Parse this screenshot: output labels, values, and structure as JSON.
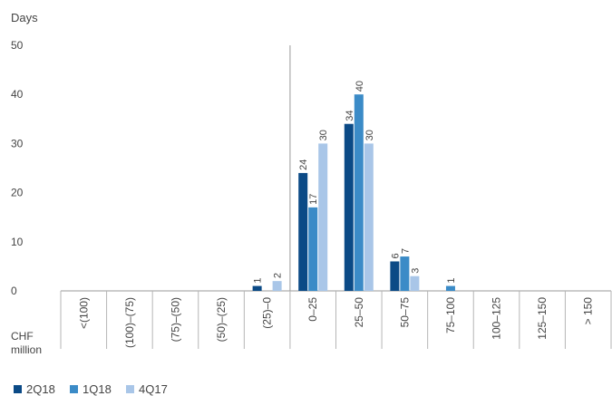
{
  "chart_data": {
    "type": "bar",
    "ylabel": "Days",
    "xlabel_lines": [
      "CHF",
      "million"
    ],
    "ylim": [
      0,
      50
    ],
    "yticks": [
      0,
      10,
      20,
      30,
      40,
      50
    ],
    "grid": false,
    "legend_position": "bottom-left",
    "categories": [
      "<(100)",
      "(100)–(75)",
      "(75)–(50)",
      "(50)–(25)",
      "(25)–0",
      "0–25",
      "25–50",
      "50–75",
      "75–100",
      "100–125",
      "125–150",
      "> 150"
    ],
    "series": [
      {
        "name": "2Q18",
        "color": "#0b4a86",
        "values": [
          null,
          null,
          null,
          null,
          1,
          24,
          34,
          6,
          null,
          null,
          null,
          null
        ]
      },
      {
        "name": "1Q18",
        "color": "#3b8bc7",
        "values": [
          null,
          null,
          null,
          null,
          null,
          17,
          40,
          7,
          1,
          null,
          null,
          null
        ]
      },
      {
        "name": "4Q17",
        "color": "#a9c6e8",
        "values": [
          null,
          null,
          null,
          null,
          2,
          30,
          30,
          3,
          null,
          null,
          null,
          null
        ]
      }
    ]
  }
}
